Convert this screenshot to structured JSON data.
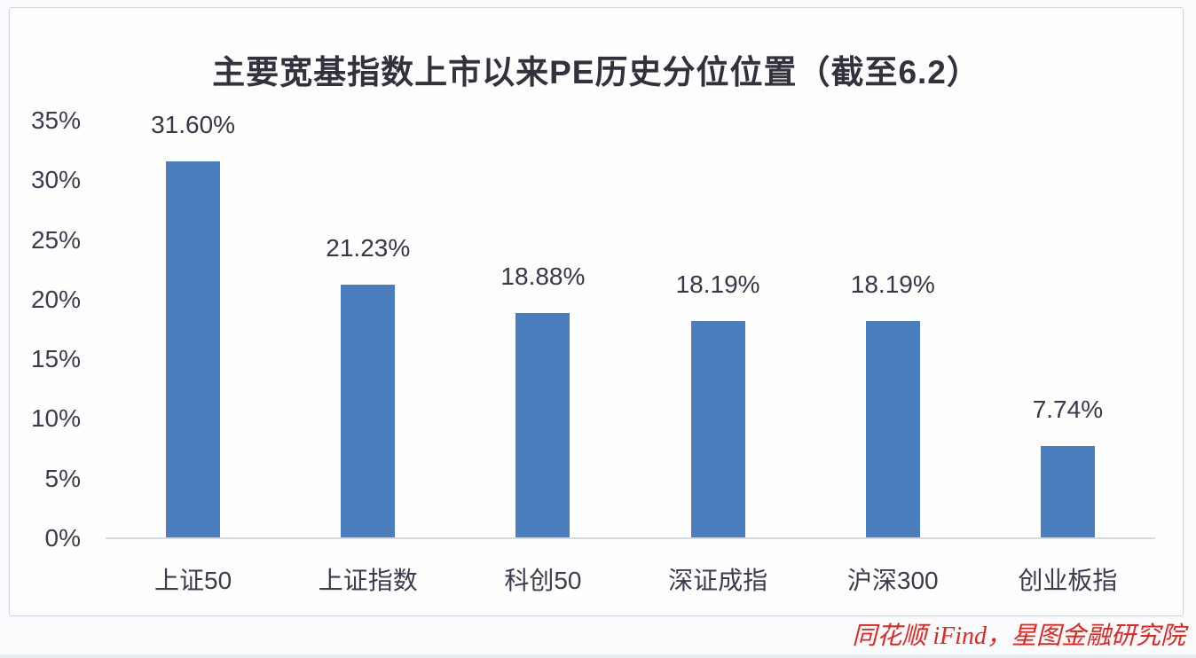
{
  "page": {
    "source_attribution": "同花顺 iFind，星图金融研究院"
  },
  "colors": {
    "bar": "#4A7EBC",
    "axis_text": "#3B3B4D",
    "title_text": "#32323C",
    "source_text": "#E8231D",
    "baseline": "#D6DAE0",
    "card_border": "#D2D6DE",
    "card_bg": "#FEFEFF",
    "page_bg": "#FAFBFD"
  },
  "chart_data": {
    "type": "bar",
    "title": "主要宽基指数上市以来PE历史分位位置（截至6.2）",
    "categories": [
      "上证50",
      "上证指数",
      "科创50",
      "深证成指",
      "沪深300",
      "创业板指"
    ],
    "values": [
      31.6,
      21.23,
      18.88,
      18.19,
      18.19,
      7.74
    ],
    "value_labels": [
      "31.60%",
      "21.23%",
      "18.88%",
      "18.19%",
      "18.19%",
      "7.74%"
    ],
    "xlabel": "",
    "ylabel": "",
    "yticks": [
      0,
      5,
      10,
      15,
      20,
      25,
      30,
      35
    ],
    "ytick_labels": [
      "0%",
      "5%",
      "10%",
      "15%",
      "20%",
      "25%",
      "30%",
      "35%"
    ],
    "ylim": [
      0,
      35
    ],
    "grid": false,
    "legend": false,
    "bar_color": "#4A7EBC"
  }
}
